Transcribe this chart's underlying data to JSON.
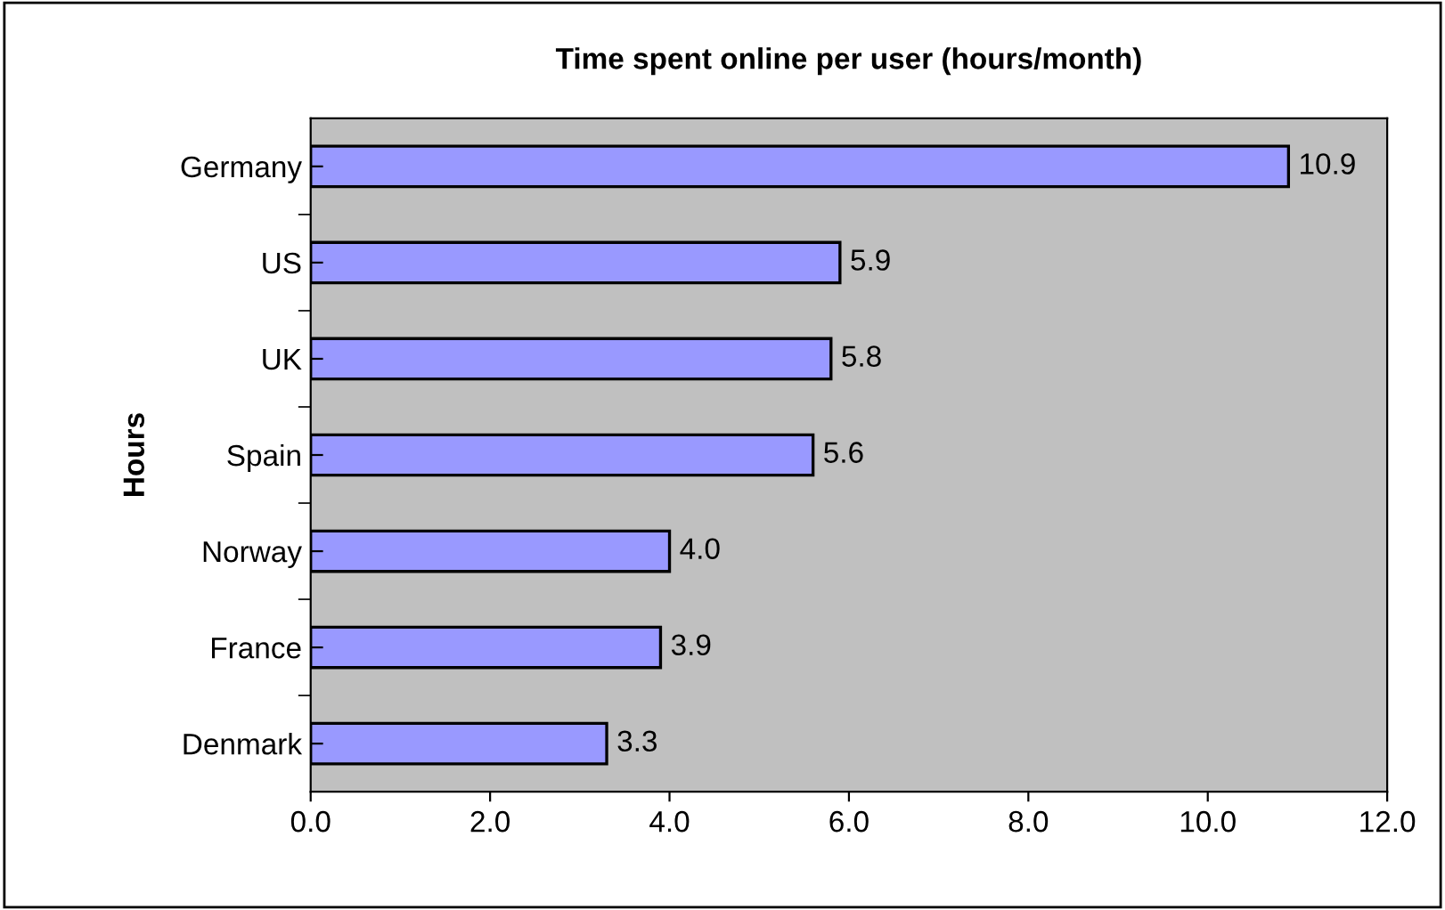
{
  "chart_data": {
    "type": "bar",
    "orientation": "horizontal",
    "title": "Time spent online per user (hours/month)",
    "ylabel": "Hours",
    "categories": [
      "Germany",
      "US",
      "UK",
      "Spain",
      "Norway",
      "France",
      "Denmark"
    ],
    "values": [
      10.9,
      5.9,
      5.8,
      5.6,
      4.0,
      3.9,
      3.3
    ],
    "value_labels": [
      "10.9",
      "5.9",
      "5.8",
      "5.6",
      "4.0",
      "3.9",
      "3.3"
    ],
    "color": "#9999ff",
    "xlim": [
      0,
      12
    ],
    "xticks": [
      {
        "value": 0,
        "label": "0.0"
      },
      {
        "value": 2,
        "label": "2.0"
      },
      {
        "value": 4,
        "label": "4.0"
      },
      {
        "value": 6,
        "label": "6.0"
      },
      {
        "value": 8,
        "label": "8.0"
      },
      {
        "value": 10,
        "label": "10.0"
      },
      {
        "value": 12,
        "label": "12.0"
      }
    ],
    "grid": false,
    "legend": false
  }
}
